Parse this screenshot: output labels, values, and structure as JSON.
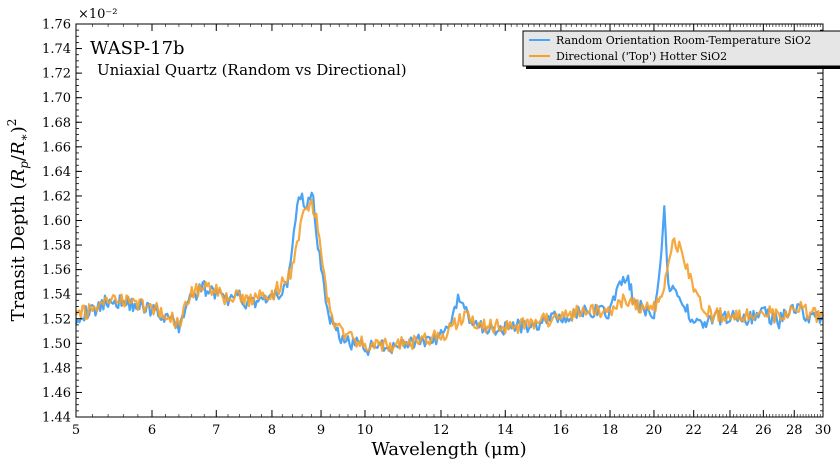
{
  "chart_data": {
    "type": "line",
    "xlabel": "Wavelength (μm)",
    "ylabel": "Transit Depth (R_p/R_*)^2",
    "ylabel_parts": [
      "Transit Depth (",
      "R",
      "p",
      "/",
      "R",
      "∗",
      ")",
      "2"
    ],
    "y_exponent_label": "×10⁻²",
    "x_scale": "log",
    "xlim": [
      5,
      30
    ],
    "ylim": [
      1.44,
      1.76
    ],
    "x_ticks": [
      5,
      6,
      7,
      8,
      9,
      10,
      12,
      14,
      16,
      18,
      20,
      22,
      24,
      26,
      28,
      30
    ],
    "x_tick_labels": [
      "5",
      "6",
      "7",
      "8",
      "9",
      "10",
      "12",
      "14",
      "16",
      "18",
      "20",
      "22",
      "24",
      "26",
      "28",
      "30"
    ],
    "y_ticks": [
      1.44,
      1.46,
      1.48,
      1.5,
      1.52,
      1.54,
      1.56,
      1.58,
      1.6,
      1.62,
      1.64,
      1.66,
      1.68,
      1.7,
      1.72,
      1.74,
      1.76
    ],
    "y_tick_labels": [
      "1.44",
      "1.46",
      "1.48",
      "1.50",
      "1.52",
      "1.54",
      "1.56",
      "1.58",
      "1.60",
      "1.62",
      "1.64",
      "1.66",
      "1.68",
      "1.70",
      "1.72",
      "1.74",
      "1.76"
    ],
    "annotations": {
      "title": "WASP-17b",
      "subtitle": "Uniaxial Quartz (Random vs Directional)"
    },
    "legend": {
      "placement": "top-right"
    },
    "series": [
      {
        "name": "Random Orientation Room-Temperature SiO2",
        "color": "#4ba3f5",
        "x": [
          5.0,
          5.2,
          5.4,
          5.6,
          5.8,
          6.0,
          6.2,
          6.4,
          6.5,
          6.6,
          6.8,
          7.0,
          7.2,
          7.4,
          7.6,
          7.8,
          8.0,
          8.1,
          8.2,
          8.3,
          8.4,
          8.5,
          8.6,
          8.7,
          8.8,
          8.9,
          9.0,
          9.1,
          9.2,
          9.4,
          9.6,
          9.8,
          10.0,
          10.5,
          11.0,
          11.5,
          12.0,
          12.3,
          12.5,
          12.8,
          13.0,
          14.0,
          15.0,
          16.0,
          17.0,
          18.0,
          18.5,
          18.8,
          19.0,
          19.3,
          19.6,
          20.0,
          20.3,
          20.5,
          20.7,
          21.0,
          21.5,
          22.0,
          22.5,
          23.0,
          24.0,
          25.0,
          26.0,
          27.0,
          28.0,
          29.0,
          30.0
        ],
        "y": [
          1.522,
          1.526,
          1.535,
          1.534,
          1.531,
          1.528,
          1.522,
          1.513,
          1.53,
          1.538,
          1.545,
          1.54,
          1.535,
          1.537,
          1.532,
          1.538,
          1.535,
          1.54,
          1.538,
          1.548,
          1.575,
          1.612,
          1.62,
          1.612,
          1.627,
          1.59,
          1.56,
          1.54,
          1.52,
          1.505,
          1.5,
          1.502,
          1.496,
          1.497,
          1.5,
          1.502,
          1.505,
          1.512,
          1.54,
          1.521,
          1.515,
          1.512,
          1.515,
          1.522,
          1.525,
          1.526,
          1.55,
          1.555,
          1.536,
          1.53,
          1.525,
          1.525,
          1.56,
          1.611,
          1.55,
          1.54,
          1.53,
          1.52,
          1.515,
          1.52,
          1.522,
          1.52,
          1.525,
          1.518,
          1.53,
          1.522,
          1.52
        ]
      },
      {
        "name": "Directional ('Top') Hotter SiO2",
        "color": "#f5a02c",
        "x": [
          5.0,
          5.2,
          5.4,
          5.6,
          5.8,
          6.0,
          6.2,
          6.4,
          6.5,
          6.6,
          6.8,
          7.0,
          7.2,
          7.4,
          7.6,
          7.8,
          8.0,
          8.1,
          8.2,
          8.3,
          8.4,
          8.5,
          8.6,
          8.7,
          8.8,
          8.9,
          9.0,
          9.1,
          9.2,
          9.4,
          9.6,
          9.8,
          10.0,
          10.5,
          11.0,
          11.5,
          12.0,
          12.3,
          12.5,
          12.8,
          13.0,
          14.0,
          15.0,
          16.0,
          17.0,
          18.0,
          18.5,
          18.8,
          19.0,
          19.3,
          19.6,
          20.0,
          20.3,
          20.5,
          20.7,
          21.0,
          21.5,
          22.0,
          22.5,
          23.0,
          24.0,
          25.0,
          26.0,
          27.0,
          28.0,
          29.0,
          30.0
        ],
        "y": [
          1.523,
          1.527,
          1.534,
          1.535,
          1.532,
          1.529,
          1.524,
          1.515,
          1.532,
          1.54,
          1.548,
          1.542,
          1.536,
          1.538,
          1.534,
          1.54,
          1.538,
          1.545,
          1.548,
          1.555,
          1.56,
          1.585,
          1.6,
          1.612,
          1.614,
          1.6,
          1.575,
          1.545,
          1.525,
          1.51,
          1.505,
          1.503,
          1.498,
          1.498,
          1.5,
          1.503,
          1.506,
          1.512,
          1.518,
          1.522,
          1.516,
          1.513,
          1.516,
          1.523,
          1.526,
          1.528,
          1.534,
          1.535,
          1.532,
          1.53,
          1.527,
          1.528,
          1.54,
          1.55,
          1.56,
          1.585,
          1.57,
          1.545,
          1.53,
          1.522,
          1.524,
          1.522,
          1.528,
          1.52,
          1.532,
          1.524,
          1.522
        ]
      }
    ]
  }
}
